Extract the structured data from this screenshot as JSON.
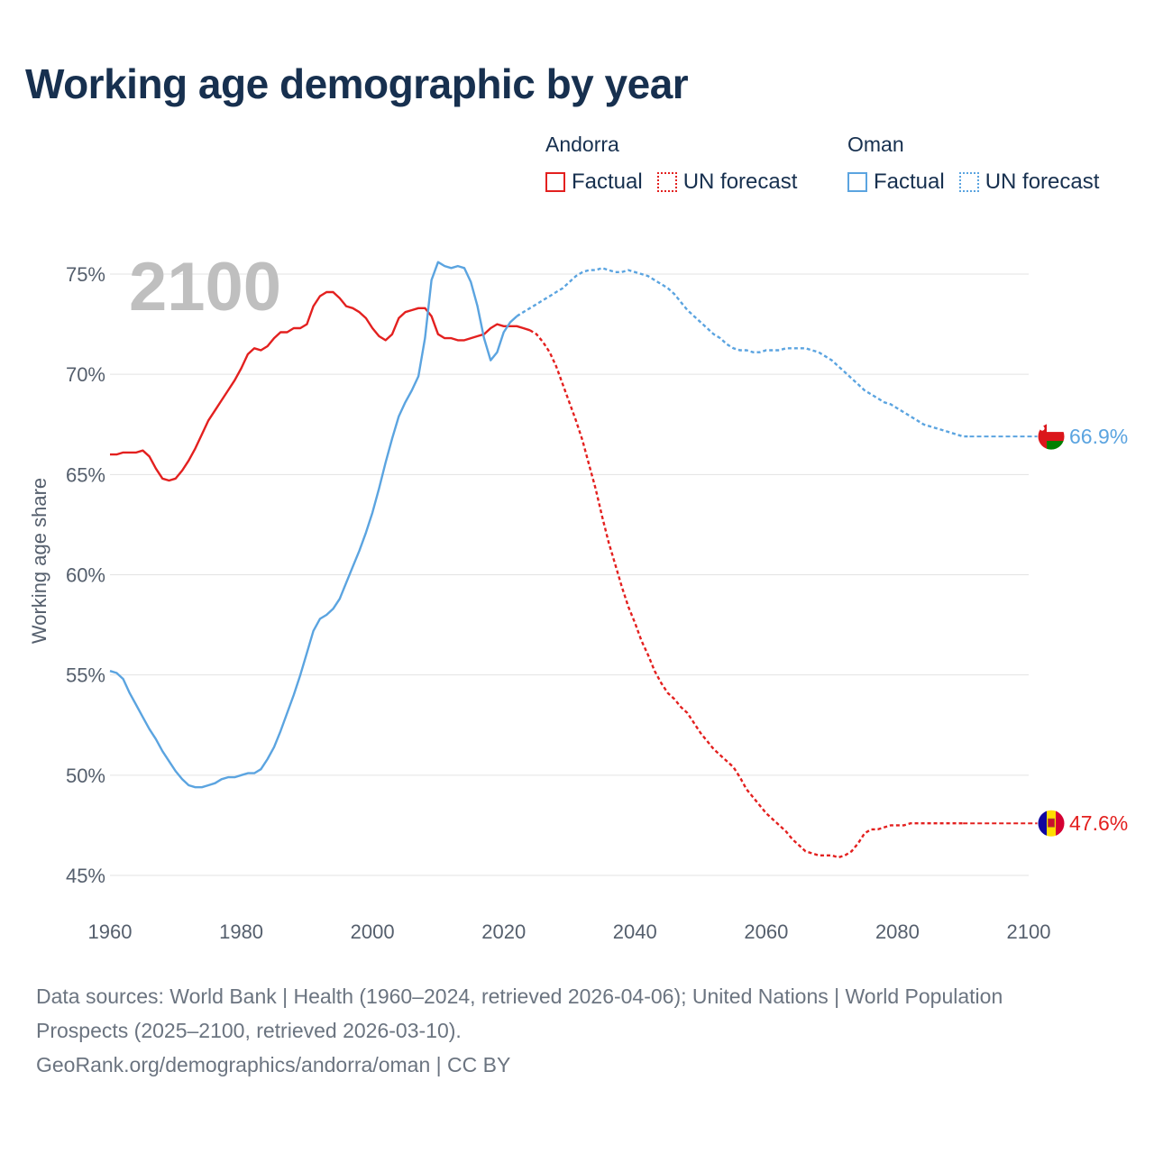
{
  "title": "Working age demographic by year",
  "year_watermark": "2100",
  "legend": {
    "groups": [
      {
        "country": "Andorra",
        "color": "#e3201f",
        "items": [
          {
            "label": "Factual",
            "style": "solid"
          },
          {
            "label": "UN forecast",
            "style": "dotted"
          }
        ]
      },
      {
        "country": "Oman",
        "color": "#5ba4e0",
        "items": [
          {
            "label": "Factual",
            "style": "solid"
          },
          {
            "label": "UN forecast",
            "style": "dotted"
          }
        ]
      }
    ]
  },
  "sources": {
    "line1": "Data sources: World Bank | Health (1960–2024, retrieved 2026-04-06); United Nations | World Population Prospects (2025–2100, retrieved 2026-03-10).",
    "line2": "GeoRank.org/demographics/andorra/oman | CC BY"
  },
  "chart_data": {
    "type": "line",
    "title": "Working age demographic by year",
    "xlabel": "",
    "ylabel": "Working age share",
    "xlim": [
      1960,
      2100
    ],
    "ylim": [
      45,
      75
    ],
    "x_ticks": [
      1960,
      1980,
      2000,
      2020,
      2040,
      2060,
      2080,
      2100
    ],
    "y_ticks": [
      45,
      50,
      55,
      60,
      65,
      70,
      75
    ],
    "y_tick_labels": [
      "45%",
      "50%",
      "55%",
      "60%",
      "65%",
      "70%",
      "75%"
    ],
    "grid": true,
    "series": [
      {
        "name": "Andorra",
        "color": "#e3201f",
        "end_label": "47.6%",
        "flag": "Andorra",
        "factual": [
          [
            1960,
            66.0
          ],
          [
            1961,
            66.0
          ],
          [
            1962,
            66.1
          ],
          [
            1963,
            66.1
          ],
          [
            1964,
            66.1
          ],
          [
            1965,
            66.2
          ],
          [
            1966,
            65.9
          ],
          [
            1967,
            65.3
          ],
          [
            1968,
            64.8
          ],
          [
            1969,
            64.7
          ],
          [
            1970,
            64.8
          ],
          [
            1971,
            65.2
          ],
          [
            1972,
            65.7
          ],
          [
            1973,
            66.3
          ],
          [
            1974,
            67.0
          ],
          [
            1975,
            67.7
          ],
          [
            1976,
            68.2
          ],
          [
            1977,
            68.7
          ],
          [
            1978,
            69.2
          ],
          [
            1979,
            69.7
          ],
          [
            1980,
            70.3
          ],
          [
            1981,
            71.0
          ],
          [
            1982,
            71.3
          ],
          [
            1983,
            71.2
          ],
          [
            1984,
            71.4
          ],
          [
            1985,
            71.8
          ],
          [
            1986,
            72.1
          ],
          [
            1987,
            72.1
          ],
          [
            1988,
            72.3
          ],
          [
            1989,
            72.3
          ],
          [
            1990,
            72.5
          ],
          [
            1991,
            73.4
          ],
          [
            1992,
            73.9
          ],
          [
            1993,
            74.1
          ],
          [
            1994,
            74.1
          ],
          [
            1995,
            73.8
          ],
          [
            1996,
            73.4
          ],
          [
            1997,
            73.3
          ],
          [
            1998,
            73.1
          ],
          [
            1999,
            72.8
          ],
          [
            2000,
            72.3
          ],
          [
            2001,
            71.9
          ],
          [
            2002,
            71.7
          ],
          [
            2003,
            72.0
          ],
          [
            2004,
            72.8
          ],
          [
            2005,
            73.1
          ],
          [
            2006,
            73.2
          ],
          [
            2007,
            73.3
          ],
          [
            2008,
            73.3
          ],
          [
            2009,
            72.9
          ],
          [
            2010,
            72.0
          ],
          [
            2011,
            71.8
          ],
          [
            2012,
            71.8
          ],
          [
            2013,
            71.7
          ],
          [
            2014,
            71.7
          ],
          [
            2015,
            71.8
          ],
          [
            2016,
            71.9
          ],
          [
            2017,
            72.0
          ],
          [
            2018,
            72.3
          ],
          [
            2019,
            72.5
          ],
          [
            2020,
            72.4
          ],
          [
            2021,
            72.4
          ],
          [
            2022,
            72.4
          ],
          [
            2023,
            72.3
          ],
          [
            2024,
            72.2
          ]
        ],
        "forecast": [
          [
            2024,
            72.2
          ],
          [
            2025,
            72.0
          ],
          [
            2026,
            71.6
          ],
          [
            2027,
            71.1
          ],
          [
            2028,
            70.4
          ],
          [
            2029,
            69.5
          ],
          [
            2030,
            68.6
          ],
          [
            2031,
            67.7
          ],
          [
            2032,
            66.7
          ],
          [
            2033,
            65.5
          ],
          [
            2034,
            64.3
          ],
          [
            2035,
            62.9
          ],
          [
            2036,
            61.6
          ],
          [
            2037,
            60.5
          ],
          [
            2038,
            59.4
          ],
          [
            2039,
            58.4
          ],
          [
            2040,
            57.6
          ],
          [
            2041,
            56.7
          ],
          [
            2042,
            56.0
          ],
          [
            2043,
            55.2
          ],
          [
            2044,
            54.6
          ],
          [
            2045,
            54.1
          ],
          [
            2046,
            53.8
          ],
          [
            2047,
            53.4
          ],
          [
            2048,
            53.1
          ],
          [
            2049,
            52.6
          ],
          [
            2050,
            52.1
          ],
          [
            2051,
            51.7
          ],
          [
            2052,
            51.3
          ],
          [
            2053,
            51.0
          ],
          [
            2054,
            50.7
          ],
          [
            2055,
            50.4
          ],
          [
            2056,
            49.9
          ],
          [
            2057,
            49.3
          ],
          [
            2058,
            48.9
          ],
          [
            2059,
            48.5
          ],
          [
            2060,
            48.1
          ],
          [
            2061,
            47.8
          ],
          [
            2062,
            47.5
          ],
          [
            2063,
            47.2
          ],
          [
            2064,
            46.8
          ],
          [
            2065,
            46.5
          ],
          [
            2066,
            46.2
          ],
          [
            2067,
            46.1
          ],
          [
            2068,
            46.0
          ],
          [
            2069,
            46.0
          ],
          [
            2070,
            46.0
          ],
          [
            2071,
            45.9
          ],
          [
            2072,
            46.0
          ],
          [
            2073,
            46.2
          ],
          [
            2074,
            46.6
          ],
          [
            2075,
            47.1
          ],
          [
            2076,
            47.3
          ],
          [
            2077,
            47.3
          ],
          [
            2078,
            47.4
          ],
          [
            2079,
            47.5
          ],
          [
            2080,
            47.5
          ],
          [
            2081,
            47.5
          ],
          [
            2082,
            47.6
          ],
          [
            2083,
            47.6
          ],
          [
            2084,
            47.6
          ],
          [
            2085,
            47.6
          ],
          [
            2086,
            47.6
          ],
          [
            2087,
            47.6
          ],
          [
            2088,
            47.6
          ],
          [
            2089,
            47.6
          ],
          [
            2090,
            47.6
          ]
        ]
      },
      {
        "name": "Oman",
        "color": "#5ba4e0",
        "end_label": "66.9%",
        "flag": "Oman",
        "factual": [
          [
            1960,
            55.2
          ],
          [
            1961,
            55.1
          ],
          [
            1962,
            54.8
          ],
          [
            1963,
            54.1
          ],
          [
            1964,
            53.5
          ],
          [
            1965,
            52.9
          ],
          [
            1966,
            52.3
          ],
          [
            1967,
            51.8
          ],
          [
            1968,
            51.2
          ],
          [
            1969,
            50.7
          ],
          [
            1970,
            50.2
          ],
          [
            1971,
            49.8
          ],
          [
            1972,
            49.5
          ],
          [
            1973,
            49.4
          ],
          [
            1974,
            49.4
          ],
          [
            1975,
            49.5
          ],
          [
            1976,
            49.6
          ],
          [
            1977,
            49.8
          ],
          [
            1978,
            49.9
          ],
          [
            1979,
            49.9
          ],
          [
            1980,
            50.0
          ],
          [
            1981,
            50.1
          ],
          [
            1982,
            50.1
          ],
          [
            1983,
            50.3
          ],
          [
            1984,
            50.8
          ],
          [
            1985,
            51.4
          ],
          [
            1986,
            52.2
          ],
          [
            1987,
            53.1
          ],
          [
            1988,
            54.0
          ],
          [
            1989,
            55.0
          ],
          [
            1990,
            56.1
          ],
          [
            1991,
            57.2
          ],
          [
            1992,
            57.8
          ],
          [
            1993,
            58.0
          ],
          [
            1994,
            58.3
          ],
          [
            1995,
            58.8
          ],
          [
            1996,
            59.6
          ],
          [
            1997,
            60.4
          ],
          [
            1998,
            61.2
          ],
          [
            1999,
            62.1
          ],
          [
            2000,
            63.1
          ],
          [
            2001,
            64.3
          ],
          [
            2002,
            65.6
          ],
          [
            2003,
            66.8
          ],
          [
            2004,
            67.9
          ],
          [
            2005,
            68.6
          ],
          [
            2006,
            69.2
          ],
          [
            2007,
            69.9
          ],
          [
            2008,
            71.8
          ],
          [
            2009,
            74.7
          ],
          [
            2010,
            75.6
          ],
          [
            2011,
            75.4
          ],
          [
            2012,
            75.3
          ],
          [
            2013,
            75.4
          ],
          [
            2014,
            75.3
          ],
          [
            2015,
            74.6
          ],
          [
            2016,
            73.4
          ],
          [
            2017,
            71.8
          ],
          [
            2018,
            70.7
          ],
          [
            2019,
            71.1
          ],
          [
            2020,
            72.1
          ],
          [
            2021,
            72.6
          ],
          [
            2022,
            72.9
          ]
        ],
        "forecast": [
          [
            2022,
            72.9
          ],
          [
            2023,
            73.1
          ],
          [
            2024,
            73.3
          ],
          [
            2025,
            73.5
          ],
          [
            2026,
            73.7
          ],
          [
            2027,
            73.9
          ],
          [
            2028,
            74.1
          ],
          [
            2029,
            74.3
          ],
          [
            2030,
            74.6
          ],
          [
            2031,
            74.9
          ],
          [
            2032,
            75.1
          ],
          [
            2033,
            75.2
          ],
          [
            2034,
            75.2
          ],
          [
            2035,
            75.3
          ],
          [
            2036,
            75.2
          ],
          [
            2037,
            75.1
          ],
          [
            2038,
            75.1
          ],
          [
            2039,
            75.2
          ],
          [
            2040,
            75.1
          ],
          [
            2041,
            75.0
          ],
          [
            2042,
            74.9
          ],
          [
            2043,
            74.7
          ],
          [
            2044,
            74.5
          ],
          [
            2045,
            74.3
          ],
          [
            2046,
            74.0
          ],
          [
            2047,
            73.6
          ],
          [
            2048,
            73.2
          ],
          [
            2049,
            72.9
          ],
          [
            2050,
            72.6
          ],
          [
            2051,
            72.3
          ],
          [
            2052,
            72.0
          ],
          [
            2053,
            71.8
          ],
          [
            2054,
            71.5
          ],
          [
            2055,
            71.3
          ],
          [
            2056,
            71.2
          ],
          [
            2057,
            71.2
          ],
          [
            2058,
            71.1
          ],
          [
            2059,
            71.1
          ],
          [
            2060,
            71.2
          ],
          [
            2061,
            71.2
          ],
          [
            2062,
            71.2
          ],
          [
            2063,
            71.3
          ],
          [
            2064,
            71.3
          ],
          [
            2065,
            71.3
          ],
          [
            2066,
            71.3
          ],
          [
            2067,
            71.2
          ],
          [
            2068,
            71.1
          ],
          [
            2069,
            70.9
          ],
          [
            2070,
            70.7
          ],
          [
            2071,
            70.4
          ],
          [
            2072,
            70.1
          ],
          [
            2073,
            69.8
          ],
          [
            2074,
            69.5
          ],
          [
            2075,
            69.2
          ],
          [
            2076,
            69.0
          ],
          [
            2077,
            68.8
          ],
          [
            2078,
            68.6
          ],
          [
            2079,
            68.5
          ],
          [
            2080,
            68.3
          ],
          [
            2081,
            68.1
          ],
          [
            2082,
            67.9
          ],
          [
            2083,
            67.7
          ],
          [
            2084,
            67.5
          ],
          [
            2085,
            67.4
          ],
          [
            2086,
            67.3
          ],
          [
            2087,
            67.2
          ],
          [
            2088,
            67.1
          ],
          [
            2089,
            67.0
          ],
          [
            2090,
            66.9
          ],
          [
            2091,
            66.9
          ]
        ]
      }
    ]
  }
}
